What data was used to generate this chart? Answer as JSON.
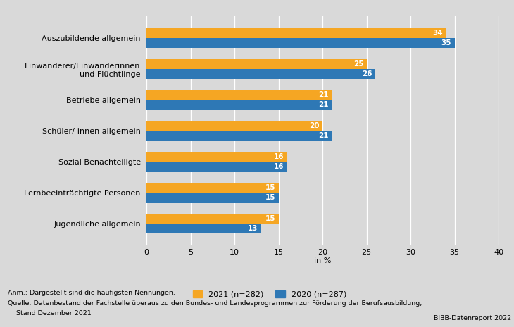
{
  "categories": [
    "Auszubildende allgemein",
    "Einwanderer/Einwanderinnen\nund Flüchtlinge",
    "Betriebe allgemein",
    "Schüler/-innen allgemein",
    "Sozial Benachteiligte",
    "Lernbeeinträchtigte Personen",
    "Jugendliche allgemein"
  ],
  "values_2021": [
    34,
    25,
    21,
    20,
    16,
    15,
    15
  ],
  "values_2020": [
    35,
    26,
    21,
    21,
    16,
    15,
    13
  ],
  "color_2021": "#F5A623",
  "color_2020": "#2E78B5",
  "background_color": "#D9D9D9",
  "plot_bg_color": "#D9D9D9",
  "xlabel": "in %",
  "xlim": [
    0,
    40
  ],
  "xticks": [
    0,
    5,
    10,
    15,
    20,
    25,
    30,
    35,
    40
  ],
  "legend_2021": "2021 (n=282)",
  "legend_2020": "2020 (n=287)",
  "bar_height": 0.32,
  "label_fontsize": 8.0,
  "tick_fontsize": 8.0,
  "annotation_fontsize": 7.5,
  "footer_note": "Anm.: Dargestellt sind die häufigsten Nennungen.",
  "footer_source_1": "Quelle: Datenbestand der Fachstelle überaus zu den Bundes- und Landesprogrammen zur Förderung der Berufsausbildung,",
  "footer_source_2": "    Stand Dezember 2021",
  "footer_right": "BIBB-Datenreport 2022"
}
